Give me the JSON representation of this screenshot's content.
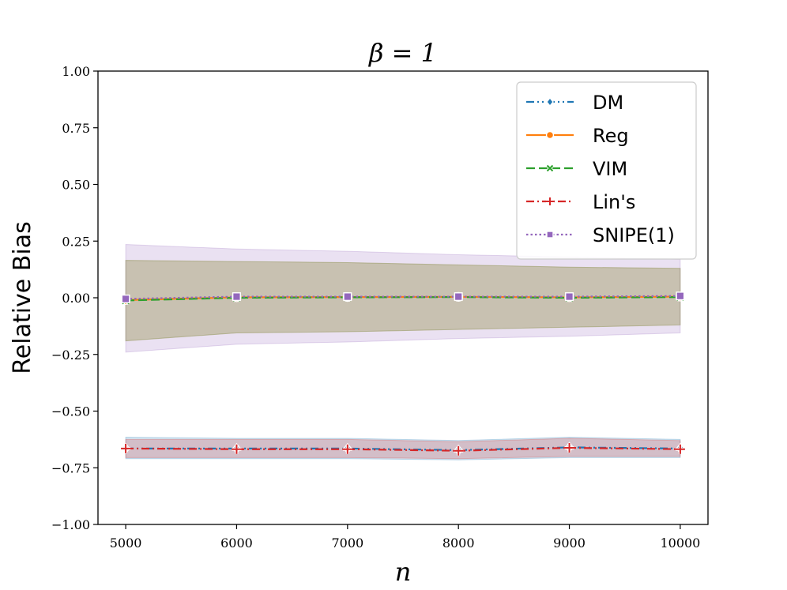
{
  "chart_data": {
    "type": "line",
    "title": "β = 1",
    "xlabel": "n",
    "ylabel": "Relative Bias",
    "xlim": [
      4750,
      10250
    ],
    "ylim": [
      -1.0,
      1.0
    ],
    "xticks": [
      5000,
      6000,
      7000,
      8000,
      9000,
      10000
    ],
    "xtick_labels": [
      "5000",
      "6000",
      "7000",
      "8000",
      "9000",
      "10000"
    ],
    "yticks": [
      -1.0,
      -0.75,
      -0.5,
      -0.25,
      0.0,
      0.25,
      0.5,
      0.75,
      1.0
    ],
    "ytick_labels": [
      "−1.00",
      "−0.75",
      "−0.50",
      "−0.25",
      "0.00",
      "0.25",
      "0.50",
      "0.75",
      "1.00"
    ],
    "grid": false,
    "legend_position": "top-right",
    "x": [
      5000,
      6000,
      7000,
      8000,
      9000,
      10000
    ],
    "series": [
      {
        "name": "DM",
        "color": "#1f77b4",
        "dash": "dashdotdot",
        "marker": "diamond",
        "values": [
          -0.665,
          -0.665,
          -0.665,
          -0.672,
          -0.66,
          -0.665
        ],
        "band_lower": [
          -0.71,
          -0.71,
          -0.71,
          -0.715,
          -0.705,
          -0.705
        ],
        "band_upper": [
          -0.615,
          -0.62,
          -0.62,
          -0.63,
          -0.615,
          -0.625
        ]
      },
      {
        "name": "Reg",
        "color": "#ff7f0e",
        "dash": "solid",
        "marker": "circle",
        "values": [
          -0.01,
          0.002,
          0.003,
          0.004,
          0.002,
          0.005
        ],
        "band_lower": [
          -0.19,
          -0.155,
          -0.15,
          -0.14,
          -0.13,
          -0.12
        ],
        "band_upper": [
          0.165,
          0.16,
          0.155,
          0.145,
          0.135,
          0.13
        ]
      },
      {
        "name": "VIM",
        "color": "#2ca02c",
        "dash": "dashed",
        "marker": "x",
        "values": [
          -0.012,
          0.0,
          0.002,
          0.003,
          0.0,
          0.003
        ],
        "band_lower": [
          -0.19,
          -0.155,
          -0.15,
          -0.14,
          -0.13,
          -0.12
        ],
        "band_upper": [
          0.165,
          0.16,
          0.155,
          0.145,
          0.135,
          0.13
        ]
      },
      {
        "name": "Lin's",
        "color": "#d62728",
        "dash": "dashdot",
        "marker": "plus",
        "values": [
          -0.665,
          -0.668,
          -0.668,
          -0.675,
          -0.662,
          -0.668
        ],
        "band_lower": [
          -0.705,
          -0.705,
          -0.705,
          -0.71,
          -0.7,
          -0.7
        ],
        "band_upper": [
          -0.625,
          -0.625,
          -0.625,
          -0.635,
          -0.62,
          -0.63
        ]
      },
      {
        "name": "SNIPE(1)",
        "color": "#9467bd",
        "dash": "dotted",
        "marker": "square",
        "values": [
          -0.005,
          0.005,
          0.005,
          0.005,
          0.005,
          0.008
        ],
        "band_lower": [
          -0.24,
          -0.205,
          -0.195,
          -0.18,
          -0.17,
          -0.155
        ],
        "band_upper": [
          0.235,
          0.215,
          0.205,
          0.19,
          0.18,
          0.17
        ]
      }
    ]
  }
}
